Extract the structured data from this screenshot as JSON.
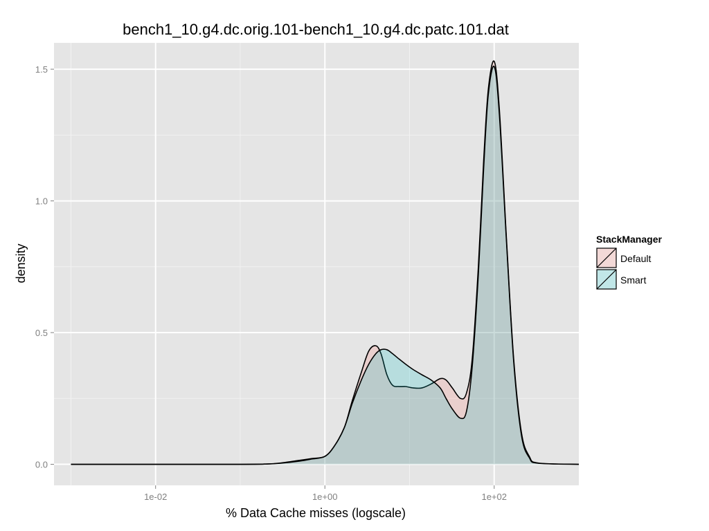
{
  "chart_data": {
    "type": "area",
    "title": "bench1_10.g4.dc.orig.101-bench1_10.g4.dc.patc.101.dat",
    "xlabel": "% Data Cache misses (logscale)",
    "ylabel": "density",
    "x_scale": "log10",
    "xlim": [
      0.000631,
      1000
    ],
    "ylim": [
      -0.08,
      1.6
    ],
    "x_ticks": [
      0.01,
      1,
      100
    ],
    "x_tick_labels": [
      "1e-02",
      "1e+00",
      "1e+02"
    ],
    "y_ticks": [
      0,
      0.5,
      1,
      1.5
    ],
    "y_tick_labels": [
      "0.0",
      "0.5",
      "1.0",
      "1.5"
    ],
    "grid": true,
    "legend": {
      "title": "StackManager",
      "position": "right"
    },
    "series": [
      {
        "name": "Default",
        "color": "#F8766D",
        "x": [
          0.001,
          0.01,
          0.1,
          0.2,
          0.3,
          0.5,
          0.7,
          1.0,
          1.3,
          1.7,
          2.1,
          2.7,
          3.3,
          4.0,
          4.6,
          5.4,
          6.3,
          7.5,
          9.0,
          11,
          14,
          18,
          23,
          27,
          32,
          40,
          47,
          55,
          65,
          75,
          85,
          100,
          115,
          140,
          170,
          210,
          260,
          330,
          1000
        ],
        "y": [
          0,
          0,
          0,
          0.001,
          0.005,
          0.015,
          0.022,
          0.03,
          0.07,
          0.14,
          0.24,
          0.35,
          0.43,
          0.45,
          0.42,
          0.34,
          0.3,
          0.295,
          0.295,
          0.29,
          0.29,
          0.305,
          0.325,
          0.32,
          0.29,
          0.25,
          0.27,
          0.4,
          0.75,
          1.15,
          1.42,
          1.53,
          1.35,
          0.85,
          0.4,
          0.12,
          0.03,
          0.005,
          0
        ]
      },
      {
        "name": "Smart",
        "color": "#00BFC4",
        "x": [
          0.001,
          0.01,
          0.1,
          0.2,
          0.3,
          0.5,
          0.7,
          1.0,
          1.3,
          1.7,
          2.1,
          2.7,
          3.3,
          4.0,
          4.6,
          5.4,
          6.3,
          7.5,
          9.0,
          11,
          14,
          18,
          23,
          27,
          32,
          40,
          47,
          55,
          65,
          75,
          85,
          100,
          115,
          140,
          170,
          210,
          260,
          330,
          1000
        ],
        "y": [
          0,
          0,
          0,
          0.001,
          0.004,
          0.012,
          0.02,
          0.03,
          0.07,
          0.14,
          0.23,
          0.32,
          0.38,
          0.42,
          0.435,
          0.435,
          0.42,
          0.4,
          0.38,
          0.36,
          0.34,
          0.32,
          0.29,
          0.25,
          0.21,
          0.175,
          0.2,
          0.37,
          0.72,
          1.12,
          1.4,
          1.51,
          1.33,
          0.84,
          0.39,
          0.11,
          0.025,
          0.004,
          0
        ]
      }
    ]
  }
}
